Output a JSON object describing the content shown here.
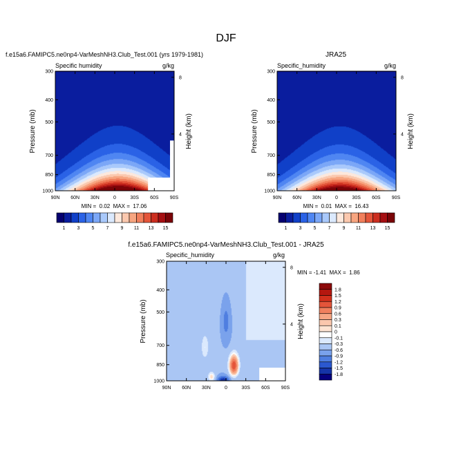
{
  "chart_data": {
    "type": "heatmap",
    "title": "DJF",
    "x_ticks": [
      "90N",
      "60N",
      "30N",
      "0",
      "30S",
      "60S",
      "90S"
    ],
    "x_range": [
      90,
      -90
    ],
    "pressure_ticks": [
      300,
      400,
      500,
      700,
      850,
      1000
    ],
    "height_ticks": [
      8,
      4
    ],
    "ylabel": "Pressure (mb)",
    "ylabel_right": "Height (km)",
    "panels": [
      {
        "id": "model",
        "title": "f.e15a6.FAMIPC5.ne0np4-VarMeshNH3.Club_Test.001 (yrs 1979-1981)",
        "left_label": "Specific humidity",
        "units": "g/kg",
        "min_max_text": "MIN =  0.02  MAX =  17.06",
        "min": 0.02,
        "max": 17.06,
        "field": "humidity"
      },
      {
        "id": "obs",
        "title": "JRA25",
        "left_label": "Specific_humidity",
        "units": "g/kg",
        "min_max_text": "MIN =  0.01  MAX =  16.43",
        "min": 0.01,
        "max": 16.43,
        "field": "humidity"
      },
      {
        "id": "diff",
        "title": "f.e15a6.FAMIPC5.ne0np4-VarMeshNH3.Club_Test.001 - JRA25",
        "left_label": "Specific_humidity",
        "units": "g/kg",
        "min_max_text": "MIN = -1.41  MAX =  1.86",
        "min": -1.41,
        "max": 1.86,
        "field": "difference"
      }
    ],
    "colorbar_humidity": {
      "orientation": "horizontal",
      "labels": [
        "1",
        "3",
        "5",
        "7",
        "9",
        "11",
        "13",
        "15"
      ],
      "colors": [
        "#06006f",
        "#0a1d9e",
        "#1040c8",
        "#2a62e6",
        "#4f86f2",
        "#7ba7f7",
        "#a9c9fb",
        "#dbe9fd",
        "#fde8dc",
        "#fbc8ae",
        "#f7a580",
        "#f17f5c",
        "#e4553a",
        "#cc2e1f",
        "#a50f12",
        "#7a0408"
      ]
    },
    "colorbar_difference": {
      "orientation": "vertical",
      "labels": [
        "1.8",
        "1.5",
        "1.2",
        "0.9",
        "0.6",
        "0.3",
        "0.1",
        "0",
        "-0.1",
        "-0.3",
        "-0.6",
        "-0.9",
        "-1.2",
        "-1.5",
        "-1.8"
      ],
      "colors": [
        "#8c0a0a",
        "#b5170f",
        "#d2301c",
        "#e4553a",
        "#f0805e",
        "#f6a684",
        "#fac7ad",
        "#fde3d2",
        "#ffffff",
        "#dbe9fd",
        "#aac6f4",
        "#7aa2ec",
        "#4f7ee0",
        "#2b58cf",
        "#1534a8",
        "#06007e"
      ]
    }
  }
}
